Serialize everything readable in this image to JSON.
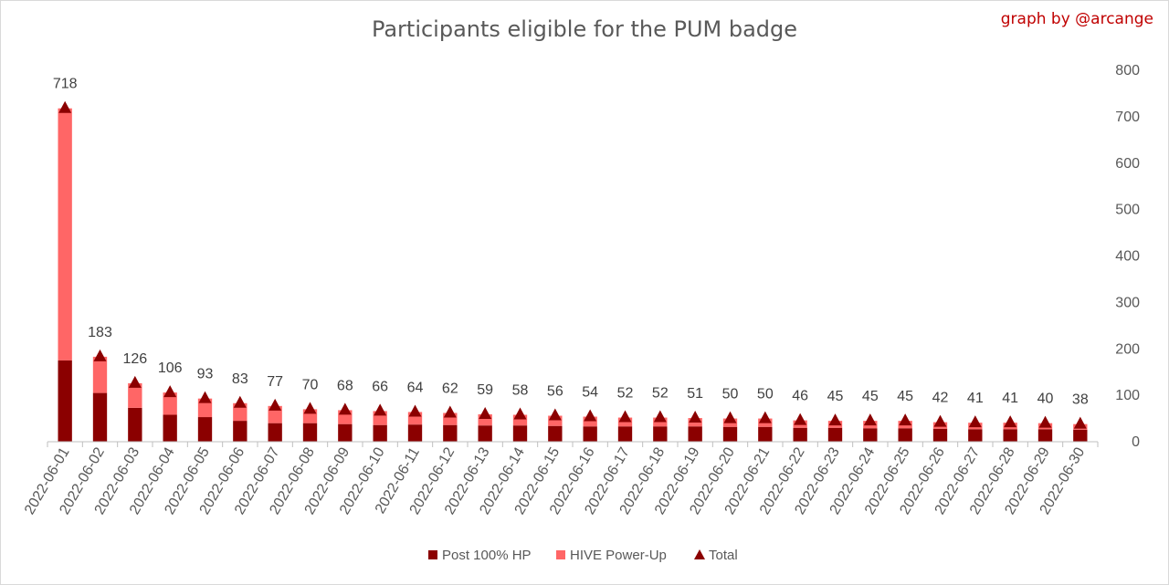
{
  "chart_data": {
    "type": "bar",
    "title": "Participants eligible for the PUM badge",
    "credit": "graph by @arcange",
    "categories": [
      "2022-06-01",
      "2022-06-02",
      "2022-06-03",
      "2022-06-04",
      "2022-06-05",
      "2022-06-06",
      "2022-06-07",
      "2022-06-08",
      "2022-06-09",
      "2022-06-10",
      "2022-06-11",
      "2022-06-12",
      "2022-06-13",
      "2022-06-14",
      "2022-06-15",
      "2022-06-16",
      "2022-06-17",
      "2022-06-18",
      "2022-06-19",
      "2022-06-20",
      "2022-06-21",
      "2022-06-22",
      "2022-06-23",
      "2022-06-24",
      "2022-06-25",
      "2022-06-26",
      "2022-06-27",
      "2022-06-28",
      "2022-06-29",
      "2022-06-30"
    ],
    "series": [
      {
        "name": "Post 100% HP",
        "kind": "bar-stacked",
        "color": "#8b0000",
        "values": [
          175,
          105,
          73,
          58,
          53,
          45,
          40,
          40,
          38,
          36,
          37,
          36,
          35,
          35,
          34,
          33,
          33,
          33,
          33,
          32,
          32,
          30,
          30,
          29,
          29,
          28,
          27,
          27,
          27,
          26
        ]
      },
      {
        "name": "HIVE Power-Up",
        "kind": "bar-stacked",
        "color": "#ff6666",
        "values": [
          543,
          78,
          53,
          48,
          40,
          38,
          37,
          30,
          30,
          30,
          27,
          26,
          24,
          23,
          22,
          21,
          19,
          19,
          18,
          18,
          18,
          16,
          15,
          16,
          16,
          14,
          14,
          14,
          13,
          12
        ]
      },
      {
        "name": "Total",
        "kind": "marker-triangle",
        "color": "#8b0000",
        "values": [
          718,
          183,
          126,
          106,
          93,
          83,
          77,
          70,
          68,
          66,
          64,
          62,
          59,
          58,
          56,
          54,
          52,
          52,
          51,
          50,
          50,
          46,
          45,
          45,
          45,
          42,
          41,
          41,
          40,
          38
        ]
      }
    ],
    "y_axis": {
      "position": "right",
      "min": 0,
      "max": 800,
      "ticks": [
        0,
        100,
        200,
        300,
        400,
        500,
        600,
        700,
        800
      ]
    },
    "data_labels": "Total",
    "grid": false,
    "legend_position": "bottom"
  }
}
